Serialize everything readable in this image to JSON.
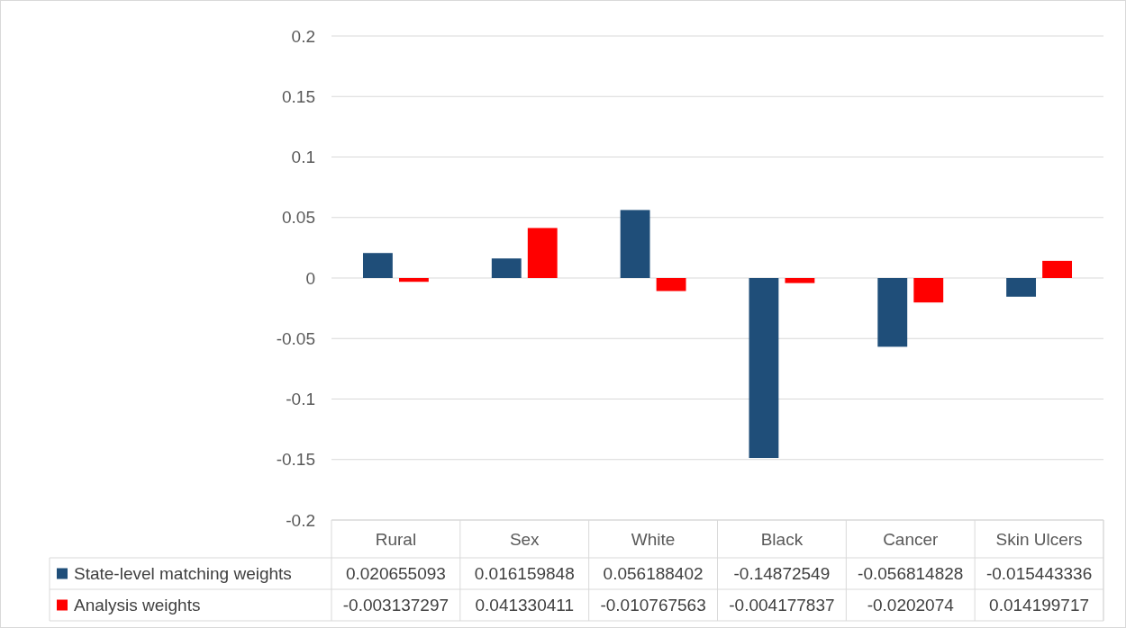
{
  "chart_data": {
    "type": "bar",
    "categories": [
      "Rural",
      "Sex",
      "White",
      "Black",
      "Cancer",
      "Skin Ulcers"
    ],
    "series": [
      {
        "name": "State-level matching weights",
        "color": "#1f4e79",
        "values": [
          0.020655093,
          0.016159848,
          0.056188402,
          -0.14872549,
          -0.056814828,
          -0.015443336
        ]
      },
      {
        "name": "Analysis weights",
        "color": "#ff0000",
        "values": [
          -0.003137297,
          0.041330411,
          -0.010767563,
          -0.004177837,
          -0.0202074,
          0.014199717
        ]
      }
    ],
    "ylim": [
      -0.2,
      0.2
    ],
    "yticks": [
      -0.2,
      -0.15,
      -0.1,
      -0.05,
      0,
      0.05,
      0.1,
      0.15,
      0.2
    ],
    "grid": "y",
    "legend": "bottom",
    "data_labels": true
  }
}
